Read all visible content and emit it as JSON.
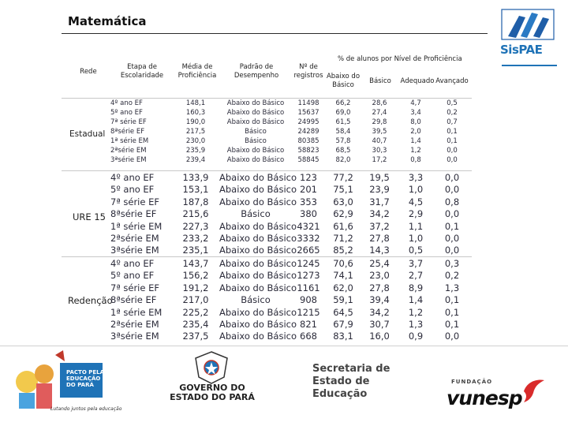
{
  "title": "Matemática",
  "logo": {
    "brand": "SisPAE"
  },
  "headers": {
    "rede": "Rede",
    "etapa": "Etapa de Escolaridade",
    "media": "Média de Proficiência",
    "padrao": "Padrão de Desempenho",
    "registros": "Nº de registros",
    "group": "% de alunos por Nível de Proficiência",
    "abaixo_basico": "Abaixo do Básico",
    "basico": "Básico",
    "adequado": "Adequado",
    "avancado": "Avançado"
  },
  "groups": [
    {
      "rede": "Estadual",
      "rows": [
        {
          "etapa": "4º ano EF",
          "media": "148,1",
          "padrao": "Abaixo do Básico",
          "registros": "11498",
          "abaixo": "66,2",
          "basico": "28,6",
          "adequado": "4,7",
          "avancado": "0,5"
        },
        {
          "etapa": "5º ano EF",
          "media": "160,3",
          "padrao": "Abaixo do Básico",
          "registros": "15637",
          "abaixo": "69,0",
          "basico": "27,4",
          "adequado": "3,4",
          "avancado": "0,2"
        },
        {
          "etapa": "7ª série EF",
          "media": "190,0",
          "padrao": "Abaixo do Básico",
          "registros": "24995",
          "abaixo": "61,5",
          "basico": "29,8",
          "adequado": "8,0",
          "avancado": "0,7"
        },
        {
          "etapa": "8ªsérie EF",
          "media": "217,5",
          "padrao": "Básico",
          "registros": "24289",
          "abaixo": "58,4",
          "basico": "39,5",
          "adequado": "2,0",
          "avancado": "0,1"
        },
        {
          "etapa": "1ª série EM",
          "media": "230,0",
          "padrao": "Básico",
          "registros": "80385",
          "abaixo": "57,8",
          "basico": "40,7",
          "adequado": "1,4",
          "avancado": "0,1"
        },
        {
          "etapa": "2ªsérie EM",
          "media": "235,9",
          "padrao": "Abaixo do Básico",
          "registros": "58823",
          "abaixo": "68,5",
          "basico": "30,3",
          "adequado": "1,2",
          "avancado": "0,0"
        },
        {
          "etapa": "3ªsérie EM",
          "media": "239,4",
          "padrao": "Abaixo do Básico",
          "registros": "58845",
          "abaixo": "82,0",
          "basico": "17,2",
          "adequado": "0,8",
          "avancado": "0,0"
        }
      ]
    },
    {
      "rede": "URE 15",
      "rows": [
        {
          "etapa": "4º ano EF",
          "media": "133,9",
          "padrao": "Abaixo do Básico",
          "registros": "123",
          "abaixo": "77,2",
          "basico": "19,5",
          "adequado": "3,3",
          "avancado": "0,0"
        },
        {
          "etapa": "5º ano EF",
          "media": "153,1",
          "padrao": "Abaixo do Básico",
          "registros": "201",
          "abaixo": "75,1",
          "basico": "23,9",
          "adequado": "1,0",
          "avancado": "0,0"
        },
        {
          "etapa": "7ª série EF",
          "media": "187,8",
          "padrao": "Abaixo do Básico",
          "registros": "353",
          "abaixo": "63,0",
          "basico": "31,7",
          "adequado": "4,5",
          "avancado": "0,8"
        },
        {
          "etapa": "8ªsérie EF",
          "media": "215,6",
          "padrao": "Básico",
          "registros": "380",
          "abaixo": "62,9",
          "basico": "34,2",
          "adequado": "2,9",
          "avancado": "0,0"
        },
        {
          "etapa": "1ª série EM",
          "media": "227,3",
          "padrao": "Abaixo do Básico",
          "registros": "4321",
          "abaixo": "61,6",
          "basico": "37,2",
          "adequado": "1,1",
          "avancado": "0,1"
        },
        {
          "etapa": "2ªsérie EM",
          "media": "233,2",
          "padrao": "Abaixo do Básico",
          "registros": "3332",
          "abaixo": "71,2",
          "basico": "27,8",
          "adequado": "1,0",
          "avancado": "0,0"
        },
        {
          "etapa": "3ªsérie EM",
          "media": "235,1",
          "padrao": "Abaixo do Básico",
          "registros": "2665",
          "abaixo": "85,2",
          "basico": "14,3",
          "adequado": "0,5",
          "avancado": "0,0"
        }
      ]
    },
    {
      "rede": "Redenção",
      "rows": [
        {
          "etapa": "4º ano EF",
          "media": "143,7",
          "padrao": "Abaixo do Básico",
          "registros": "1245",
          "abaixo": "70,6",
          "basico": "25,4",
          "adequado": "3,7",
          "avancado": "0,3"
        },
        {
          "etapa": "5º ano EF",
          "media": "156,2",
          "padrao": "Abaixo do Básico",
          "registros": "1273",
          "abaixo": "74,1",
          "basico": "23,0",
          "adequado": "2,7",
          "avancado": "0,2"
        },
        {
          "etapa": "7ª série EF",
          "media": "191,2",
          "padrao": "Abaixo do Básico",
          "registros": "1161",
          "abaixo": "62,0",
          "basico": "27,8",
          "adequado": "8,9",
          "avancado": "1,3"
        },
        {
          "etapa": "8ªsérie EF",
          "media": "217,0",
          "padrao": "Básico",
          "registros": "908",
          "abaixo": "59,1",
          "basico": "39,4",
          "adequado": "1,4",
          "avancado": "0,1"
        },
        {
          "etapa": "1ª série EM",
          "media": "225,2",
          "padrao": "Abaixo do Básico",
          "registros": "1215",
          "abaixo": "64,5",
          "basico": "34,2",
          "adequado": "1,2",
          "avancado": "0,1"
        },
        {
          "etapa": "2ªsérie EM",
          "media": "235,4",
          "padrao": "Abaixo do Básico",
          "registros": "821",
          "abaixo": "67,9",
          "basico": "30,7",
          "adequado": "1,3",
          "avancado": "0,1"
        },
        {
          "etapa": "3ªsérie EM",
          "media": "237,5",
          "padrao": "Abaixo do Básico",
          "registros": "668",
          "abaixo": "83,1",
          "basico": "16,0",
          "adequado": "0,9",
          "avancado": "0,0"
        }
      ]
    }
  ],
  "footer": {
    "pacto": "PACTO PELA EDUCAÇÃO DO PARÁ",
    "pacto_sub": "Lutando juntos pela educação",
    "governo": "GOVERNO DO ESTADO DO PARÁ",
    "secretaria": "Secretaria de Estado de Educação",
    "fundacao": "FUNDAÇÃO",
    "vunesp": "vunesp"
  }
}
